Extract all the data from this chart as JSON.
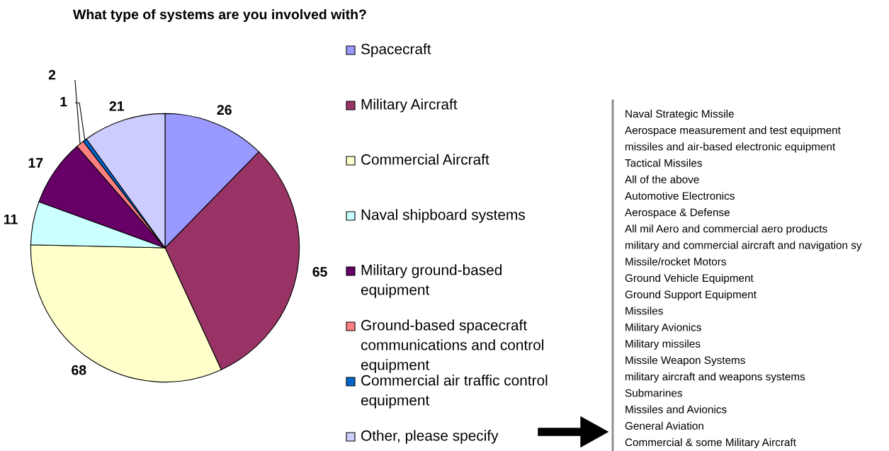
{
  "chart_data": {
    "type": "pie",
    "title": "What type of systems are you involved with?",
    "categories": [
      "Spacecraft",
      "Military Aircraft",
      "Commercial Aircraft",
      "Naval shipboard systems",
      "Military ground-based equipment",
      "Ground-based spacecraft communications and control equipment",
      "Commercial air traffic control equipment",
      "Other, please specify"
    ],
    "values": [
      26,
      65,
      68,
      11,
      17,
      2,
      1,
      21
    ],
    "colors": [
      "#9999ff",
      "#993366",
      "#ffffcc",
      "#ccffff",
      "#660066",
      "#ff8080",
      "#0066cc",
      "#ccccff"
    ],
    "data_labels": true,
    "legend": "right",
    "annotations": [
      "Naval Strategic Missile",
      "Aerospace measurement and test equipment",
      "missiles and air-based electronic equipment",
      "Tactical Missiles",
      "All of the above",
      "Automotive Electronics",
      "Aerospace & Defense",
      "All mil Aero and commercial aero products",
      "military and commercial aircraft and navigation sy",
      "Missile/rocket Motors",
      "Ground Vehicle Equipment",
      "Ground Support Equipment",
      "Missiles",
      "Military Avionics",
      "Military missiles",
      "Missile Weapon Systems",
      "military aircraft and weapons systems",
      "Submarines",
      "Missiles and Avionics",
      "General Aviation",
      "Commercial & some Military Aircraft"
    ]
  }
}
